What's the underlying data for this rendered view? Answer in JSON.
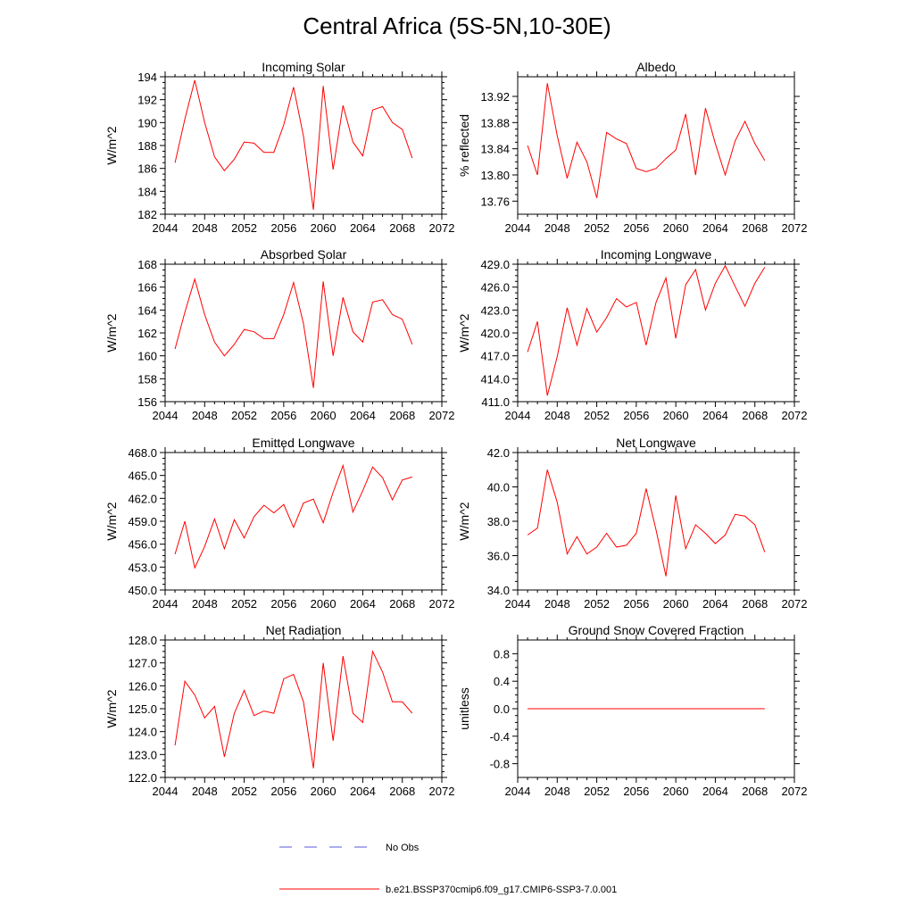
{
  "title": "Central Africa (5S-5N,10-30E)",
  "legend": {
    "obs_label": "No Obs",
    "obs_color": "#5a5adc",
    "model_label": "b.e21.BSSP370cmip6.f09_g17.CMIP6-SSP3-7.0.001",
    "model_color": "#ff0000"
  },
  "chart_data": [
    {
      "type": "line",
      "title": "Incoming Solar",
      "ylabel": "W/m^2",
      "xlim": [
        2044,
        2072
      ],
      "xticks": [
        "2044",
        "2048",
        "2052",
        "2056",
        "2060",
        "2064",
        "2068",
        "2072"
      ],
      "ylim": [
        182,
        194
      ],
      "yticks": [
        "182",
        "184",
        "186",
        "188",
        "190",
        "192",
        "194"
      ],
      "x": [
        2045,
        2046,
        2047,
        2048,
        2049,
        2050,
        2051,
        2052,
        2053,
        2054,
        2055,
        2056,
        2057,
        2058,
        2059,
        2060,
        2061,
        2062,
        2063,
        2064,
        2065,
        2066,
        2067,
        2068,
        2069
      ],
      "series": [
        {
          "values": [
            186.5,
            190.3,
            193.7,
            190.0,
            187.0,
            185.8,
            186.8,
            188.3,
            188.2,
            187.4,
            187.4,
            189.8,
            193.1,
            188.8,
            182.4,
            193.2,
            185.9,
            191.5,
            188.3,
            187.1,
            191.1,
            191.4,
            190.0,
            189.4,
            186.9
          ]
        }
      ]
    },
    {
      "type": "line",
      "title": "Albedo",
      "ylabel": "% reflected",
      "xlim": [
        2044,
        2072
      ],
      "xticks": [
        "2044",
        "2048",
        "2052",
        "2056",
        "2060",
        "2064",
        "2068",
        "2072"
      ],
      "ylim": [
        13.74,
        13.95
      ],
      "yticks": [
        "13.76",
        "13.80",
        "13.84",
        "13.88",
        "13.92"
      ],
      "x": [
        2045,
        2046,
        2047,
        2048,
        2049,
        2050,
        2051,
        2052,
        2053,
        2054,
        2055,
        2056,
        2057,
        2058,
        2059,
        2060,
        2061,
        2062,
        2063,
        2064,
        2065,
        2066,
        2067,
        2068,
        2069
      ],
      "series": [
        {
          "values": [
            13.845,
            13.8,
            13.94,
            13.86,
            13.795,
            13.85,
            13.82,
            13.765,
            13.865,
            13.855,
            13.848,
            13.81,
            13.805,
            13.81,
            13.825,
            13.838,
            13.893,
            13.8,
            13.902,
            13.848,
            13.8,
            13.852,
            13.882,
            13.848,
            13.822
          ]
        }
      ]
    },
    {
      "type": "line",
      "title": "Absorbed Solar",
      "ylabel": "W/m^2",
      "xlim": [
        2044,
        2072
      ],
      "xticks": [
        "2044",
        "2048",
        "2052",
        "2056",
        "2060",
        "2064",
        "2068",
        "2072"
      ],
      "ylim": [
        156,
        168
      ],
      "yticks": [
        "156",
        "158",
        "160",
        "162",
        "164",
        "166",
        "168"
      ],
      "x": [
        2045,
        2046,
        2047,
        2048,
        2049,
        2050,
        2051,
        2052,
        2053,
        2054,
        2055,
        2056,
        2057,
        2058,
        2059,
        2060,
        2061,
        2062,
        2063,
        2064,
        2065,
        2066,
        2067,
        2068,
        2069
      ],
      "series": [
        {
          "values": [
            160.6,
            163.8,
            166.7,
            163.6,
            161.2,
            160.0,
            161.0,
            162.3,
            162.1,
            161.5,
            161.5,
            163.6,
            166.4,
            162.8,
            157.2,
            166.5,
            160.0,
            165.1,
            162.1,
            161.2,
            164.7,
            164.9,
            163.6,
            163.2,
            161.0
          ]
        }
      ]
    },
    {
      "type": "line",
      "title": "Incoming Longwave",
      "ylabel": "W/m^2",
      "xlim": [
        2044,
        2072
      ],
      "xticks": [
        "2044",
        "2048",
        "2052",
        "2056",
        "2060",
        "2064",
        "2068",
        "2072"
      ],
      "ylim": [
        411,
        429
      ],
      "yticks": [
        "411.0",
        "414.0",
        "417.0",
        "420.0",
        "423.0",
        "426.0",
        "429.0"
      ],
      "x": [
        2045,
        2046,
        2047,
        2048,
        2049,
        2050,
        2051,
        2052,
        2053,
        2054,
        2055,
        2056,
        2057,
        2058,
        2059,
        2060,
        2061,
        2062,
        2063,
        2064,
        2065,
        2066,
        2067,
        2068,
        2069
      ],
      "series": [
        {
          "values": [
            417.5,
            421.5,
            411.8,
            416.9,
            423.3,
            418.4,
            423.2,
            420.1,
            422.0,
            424.5,
            423.4,
            424.0,
            418.4,
            424.0,
            427.2,
            419.3,
            426.3,
            428.3,
            423.0,
            426.5,
            428.8,
            426.1,
            423.5,
            426.5,
            428.6
          ]
        }
      ]
    },
    {
      "type": "line",
      "title": "Emitted Longwave",
      "ylabel": "W/m^2",
      "xlim": [
        2044,
        2072
      ],
      "xticks": [
        "2044",
        "2048",
        "2052",
        "2056",
        "2060",
        "2064",
        "2068",
        "2072"
      ],
      "ylim": [
        450,
        468
      ],
      "yticks": [
        "450.0",
        "453.0",
        "456.0",
        "459.0",
        "462.0",
        "465.0",
        "468.0"
      ],
      "x": [
        2045,
        2046,
        2047,
        2048,
        2049,
        2050,
        2051,
        2052,
        2053,
        2054,
        2055,
        2056,
        2057,
        2058,
        2059,
        2060,
        2061,
        2062,
        2063,
        2064,
        2065,
        2066,
        2067,
        2068,
        2069
      ],
      "series": [
        {
          "values": [
            454.7,
            459.0,
            452.9,
            455.7,
            459.3,
            455.4,
            459.2,
            456.8,
            459.6,
            461.1,
            460.1,
            461.2,
            458.2,
            461.4,
            461.9,
            458.8,
            462.8,
            466.3,
            460.2,
            463.0,
            466.1,
            464.7,
            461.8,
            464.4,
            464.8
          ]
        }
      ]
    },
    {
      "type": "line",
      "title": "Net Longwave",
      "ylabel": "W/m^2",
      "xlim": [
        2044,
        2072
      ],
      "xticks": [
        "2044",
        "2048",
        "2052",
        "2056",
        "2060",
        "2064",
        "2068",
        "2072"
      ],
      "ylim": [
        34,
        42
      ],
      "yticks": [
        "34.0",
        "36.0",
        "38.0",
        "40.0",
        "42.0"
      ],
      "x": [
        2045,
        2046,
        2047,
        2048,
        2049,
        2050,
        2051,
        2052,
        2053,
        2054,
        2055,
        2056,
        2057,
        2058,
        2059,
        2060,
        2061,
        2062,
        2063,
        2064,
        2065,
        2066,
        2067,
        2068,
        2069
      ],
      "series": [
        {
          "values": [
            37.2,
            37.6,
            41.0,
            39.1,
            36.1,
            37.1,
            36.1,
            36.5,
            37.3,
            36.5,
            36.6,
            37.3,
            39.9,
            37.5,
            34.8,
            39.5,
            36.4,
            37.8,
            37.3,
            36.7,
            37.2,
            38.4,
            38.3,
            37.8,
            36.2
          ]
        }
      ]
    },
    {
      "type": "line",
      "title": "Net Radiation",
      "ylabel": "W/m^2",
      "xlim": [
        2044,
        2072
      ],
      "xticks": [
        "2044",
        "2048",
        "2052",
        "2056",
        "2060",
        "2064",
        "2068",
        "2072"
      ],
      "ylim": [
        122,
        128
      ],
      "yticks": [
        "122.0",
        "123.0",
        "124.0",
        "125.0",
        "126.0",
        "127.0",
        "128.0"
      ],
      "x": [
        2045,
        2046,
        2047,
        2048,
        2049,
        2050,
        2051,
        2052,
        2053,
        2054,
        2055,
        2056,
        2057,
        2058,
        2059,
        2060,
        2061,
        2062,
        2063,
        2064,
        2065,
        2066,
        2067,
        2068,
        2069
      ],
      "series": [
        {
          "values": [
            123.4,
            126.2,
            125.6,
            124.6,
            125.1,
            122.9,
            124.8,
            125.8,
            124.7,
            124.9,
            124.8,
            126.3,
            126.5,
            125.3,
            122.4,
            127.0,
            123.6,
            127.3,
            124.8,
            124.4,
            127.5,
            126.6,
            125.3,
            125.3,
            124.8
          ]
        }
      ]
    },
    {
      "type": "line",
      "title": "Ground Snow Covered Fraction",
      "ylabel": "unitless",
      "xlim": [
        2044,
        2072
      ],
      "xticks": [
        "2044",
        "2048",
        "2052",
        "2056",
        "2060",
        "2064",
        "2068",
        "2072"
      ],
      "ylim": [
        -1,
        1
      ],
      "yticks": [
        "-0.8",
        "-0.4",
        "0.0",
        "0.4",
        "0.8"
      ],
      "x": [
        2045,
        2046,
        2047,
        2048,
        2049,
        2050,
        2051,
        2052,
        2053,
        2054,
        2055,
        2056,
        2057,
        2058,
        2059,
        2060,
        2061,
        2062,
        2063,
        2064,
        2065,
        2066,
        2067,
        2068,
        2069
      ],
      "series": [
        {
          "values": [
            0,
            0,
            0,
            0,
            0,
            0,
            0,
            0,
            0,
            0,
            0,
            0,
            0,
            0,
            0,
            0,
            0,
            0,
            0,
            0,
            0,
            0,
            0,
            0,
            0
          ]
        }
      ]
    }
  ]
}
